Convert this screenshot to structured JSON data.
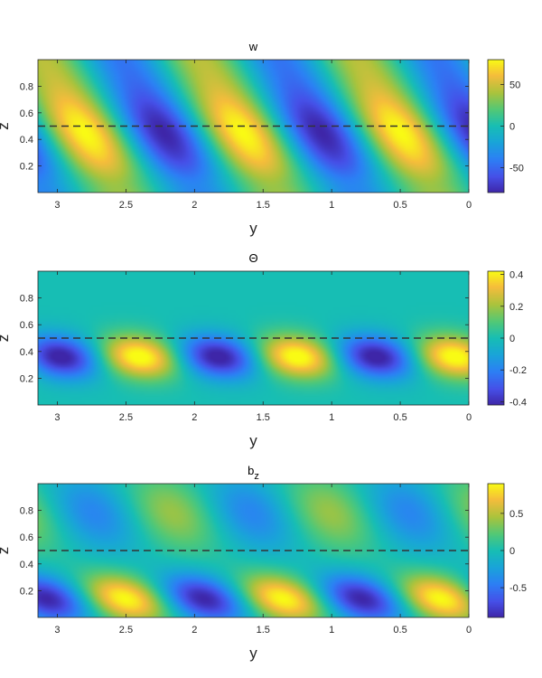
{
  "chart_data": [
    {
      "type": "heatmap",
      "title": "w",
      "title_sub": "",
      "xlabel": "y",
      "ylabel": "z",
      "xlim": [
        3.14159,
        0
      ],
      "ylim": [
        0,
        1
      ],
      "xticks": [
        3,
        2.5,
        2,
        1.5,
        1,
        0.5,
        0
      ],
      "xtick_labels": [
        "3",
        "2.5",
        "2",
        "1.5",
        "1",
        "0.5",
        "0"
      ],
      "yticks": [
        0.2,
        0.4,
        0.6,
        0.8
      ],
      "ytick_labels": [
        "0.2",
        "0.4",
        "0.6",
        "0.8"
      ],
      "clim": [
        -80,
        80
      ],
      "colorbar_ticks": [
        50,
        0,
        -50
      ],
      "colorbar_tick_labels": [
        "50",
        "0",
        "-50"
      ],
      "colormap": "parula",
      "dashed_line_z": 0.5,
      "field": {
        "amplitude": 80,
        "wavelength": 1.15,
        "tilt": 0.55,
        "phase": 0.2,
        "center_z": 0.45,
        "width": 0.28,
        "bottom_tail": 0.35
      }
    },
    {
      "type": "heatmap",
      "title": "Θ",
      "title_sub": "",
      "xlabel": "y",
      "ylabel": "z",
      "xlim": [
        3.14159,
        0
      ],
      "ylim": [
        0,
        1
      ],
      "xticks": [
        3,
        2.5,
        2,
        1.5,
        1,
        0.5,
        0
      ],
      "xtick_labels": [
        "3",
        "2.5",
        "2",
        "1.5",
        "1",
        "0.5",
        "0"
      ],
      "yticks": [
        0.2,
        0.4,
        0.6,
        0.8
      ],
      "ytick_labels": [
        "0.2",
        "0.4",
        "0.6",
        "0.8"
      ],
      "clim": [
        -0.42,
        0.42
      ],
      "colorbar_ticks": [
        0.4,
        0.2,
        0,
        -0.2,
        -0.4
      ],
      "colorbar_tick_labels": [
        "0.4",
        "0.2",
        "0",
        "-0.2",
        "-0.4"
      ],
      "colormap": "parula",
      "dashed_line_z": 0.5,
      "field": {
        "amplitude": 0.42,
        "wavelength": 1.15,
        "tilt": 0.35,
        "phase": 1.7,
        "center_z": 0.36,
        "width": 0.16,
        "bottom_tail": 0.0
      }
    },
    {
      "type": "heatmap",
      "title": "b",
      "title_sub": "z",
      "xlabel": "y",
      "ylabel": "z",
      "xlim": [
        3.14159,
        0
      ],
      "ylim": [
        0,
        1
      ],
      "xticks": [
        3,
        2.5,
        2,
        1.5,
        1,
        0.5,
        0
      ],
      "xtick_labels": [
        "3",
        "2.5",
        "2",
        "1.5",
        "1",
        "0.5",
        "0"
      ],
      "yticks": [
        0.2,
        0.4,
        0.6,
        0.8
      ],
      "ytick_labels": [
        "0.2",
        "0.4",
        "0.6",
        "0.8"
      ],
      "clim": [
        -0.9,
        0.9
      ],
      "colorbar_ticks": [
        0.5,
        0,
        -0.5
      ],
      "colorbar_tick_labels": [
        "0.5",
        "0",
        "-0.5"
      ],
      "colormap": "parula",
      "dashed_line_z": 0.5,
      "field": {
        "amplitude": 0.9,
        "wavelength": 1.15,
        "tilt": 0.6,
        "phase": 0.9,
        "center_z": 0.14,
        "width": 0.18,
        "upper_lobe": 0.45,
        "upper_center": 0.78
      }
    }
  ]
}
